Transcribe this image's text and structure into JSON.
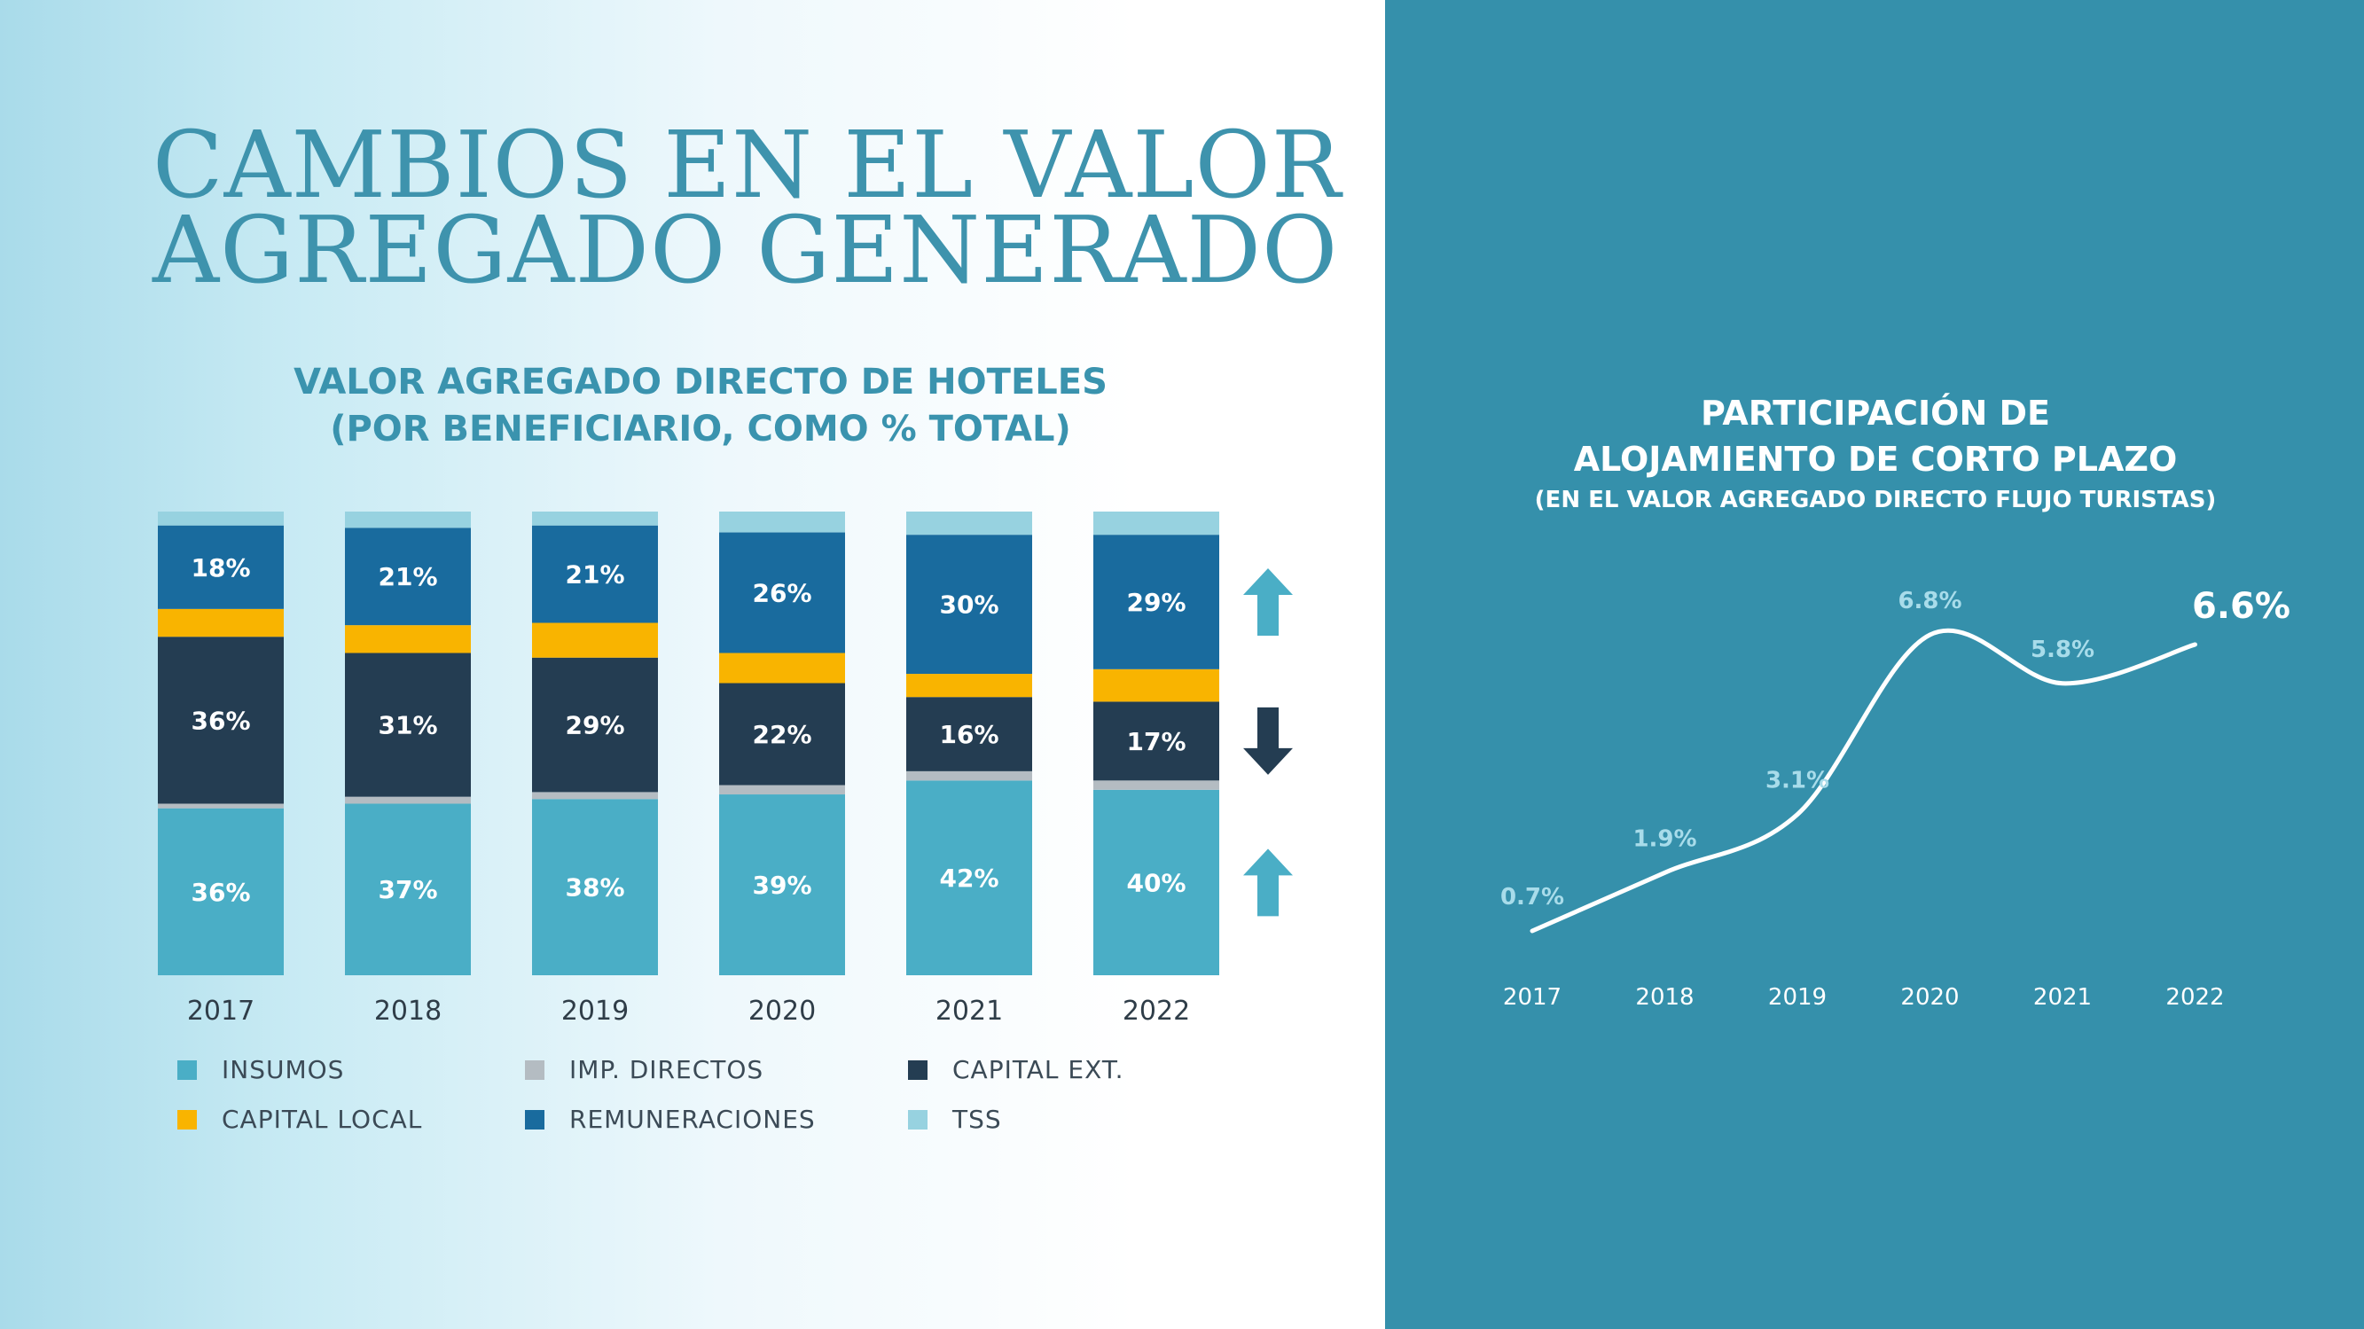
{
  "title": {
    "line1": "CAMBIOS EN EL VALOR",
    "line2": "AGREGADO GENERADO"
  },
  "colors": {
    "insumos": "#4aaec6",
    "imp_directos": "#b4bcc2",
    "capital_ext": "#243d52",
    "capital_local": "#f9b400",
    "remuneraciones": "#196b9e",
    "tss": "#97d2e0",
    "arrow_up": "#4aaec6",
    "arrow_down": "#243d52",
    "right_bg": "#3590ab"
  },
  "chart_data": [
    {
      "type": "bar",
      "stacked": true,
      "title": "VALOR AGREGADO DIRECTO DE HOTELES",
      "subtitle": "(POR BENEFICIARIO, COMO % TOTAL)",
      "categories": [
        "2017",
        "2018",
        "2019",
        "2020",
        "2021",
        "2022"
      ],
      "ylim": [
        0,
        100
      ],
      "series": [
        {
          "name": "INSUMOS",
          "key": "insumos",
          "values": [
            36,
            37,
            38,
            39,
            42,
            40
          ],
          "labels": [
            "36%",
            "37%",
            "38%",
            "39%",
            "42%",
            "40%"
          ]
        },
        {
          "name": "IMP. DIRECTOS",
          "key": "imp_directos",
          "values": [
            1,
            1.5,
            1.5,
            2,
            2,
            2
          ],
          "labels": null
        },
        {
          "name": "CAPITAL EXT.",
          "key": "capital_ext",
          "values": [
            36,
            31,
            29,
            22,
            16,
            17
          ],
          "labels": [
            "36%",
            "31%",
            "29%",
            "22%",
            "16%",
            "17%"
          ]
        },
        {
          "name": "CAPITAL LOCAL",
          "key": "capital_local",
          "values": [
            6,
            6,
            7.5,
            6.5,
            5,
            7
          ],
          "labels": null
        },
        {
          "name": "REMUNERACIONES",
          "key": "remuneraciones",
          "values": [
            18,
            21,
            21,
            26,
            30,
            29
          ],
          "labels": [
            "18%",
            "21%",
            "21%",
            "26%",
            "30%",
            "29%"
          ]
        },
        {
          "name": "TSS",
          "key": "tss",
          "values": [
            3,
            3.5,
            3,
            4.5,
            5,
            5
          ],
          "labels": null
        }
      ],
      "trend_arrows": [
        {
          "series": "REMUNERACIONES",
          "direction": "up"
        },
        {
          "series": "CAPITAL EXT.",
          "direction": "down"
        },
        {
          "series": "INSUMOS",
          "direction": "up"
        }
      ],
      "legend": [
        {
          "label": "INSUMOS",
          "key": "insumos"
        },
        {
          "label": "IMP. DIRECTOS",
          "key": "imp_directos"
        },
        {
          "label": "CAPITAL EXT.",
          "key": "capital_ext"
        },
        {
          "label": "CAPITAL LOCAL",
          "key": "capital_local"
        },
        {
          "label": "REMUNERACIONES",
          "key": "remuneraciones"
        },
        {
          "label": "TSS",
          "key": "tss"
        }
      ]
    },
    {
      "type": "line",
      "title_line1": "PARTICIPACIÓN DE",
      "title_line2": "ALOJAMIENTO DE CORTO PLAZO",
      "subtitle": "(EN EL VALOR AGREGADO DIRECTO FLUJO TURISTAS)",
      "x": [
        "2017",
        "2018",
        "2019",
        "2020",
        "2021",
        "2022"
      ],
      "y": [
        0.7,
        1.9,
        3.1,
        6.8,
        5.8,
        6.6
      ],
      "labels": [
        "0.7%",
        "1.9%",
        "3.1%",
        "6.8%",
        "5.8%",
        "6.6%"
      ],
      "highlight_last": true
    }
  ]
}
